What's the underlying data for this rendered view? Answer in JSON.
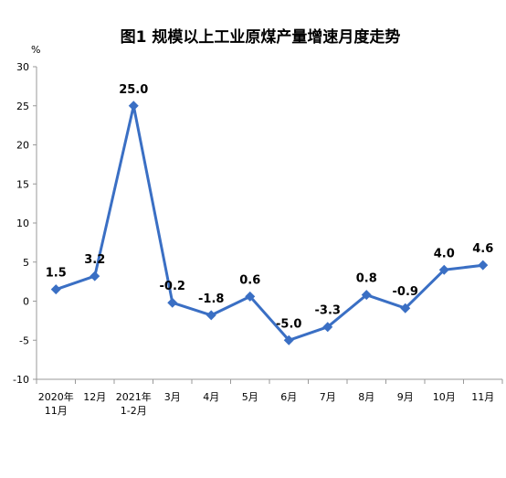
{
  "chart_data": {
    "type": "line",
    "title": "图1 规模以上工业原煤产量增速月度走势",
    "unit_label": "%",
    "categories": [
      [
        "2020年",
        "11月"
      ],
      [
        "12月"
      ],
      [
        "2021年",
        "1-2月"
      ],
      [
        "3月"
      ],
      [
        "4月"
      ],
      [
        "5月"
      ],
      [
        "6月"
      ],
      [
        "7月"
      ],
      [
        "8月"
      ],
      [
        "9月"
      ],
      [
        "10月"
      ],
      [
        "11月"
      ]
    ],
    "values": [
      1.5,
      3.2,
      25.0,
      -0.2,
      -1.8,
      0.6,
      -5.0,
      -3.3,
      0.8,
      -0.9,
      4.0,
      4.6
    ],
    "data_labels": [
      "1.5",
      "3.2",
      "25.0",
      "-0.2",
      "-1.8",
      "0.6",
      "-5.0",
      "-3.3",
      "0.8",
      "-0.9",
      "4.0",
      "4.6"
    ],
    "yticks": [
      "30",
      "25",
      "20",
      "15",
      "10",
      "5",
      "0",
      "-5",
      "-10"
    ],
    "ylim": [
      -10,
      30
    ],
    "grid": false,
    "line_color": "#3a6fc4"
  }
}
